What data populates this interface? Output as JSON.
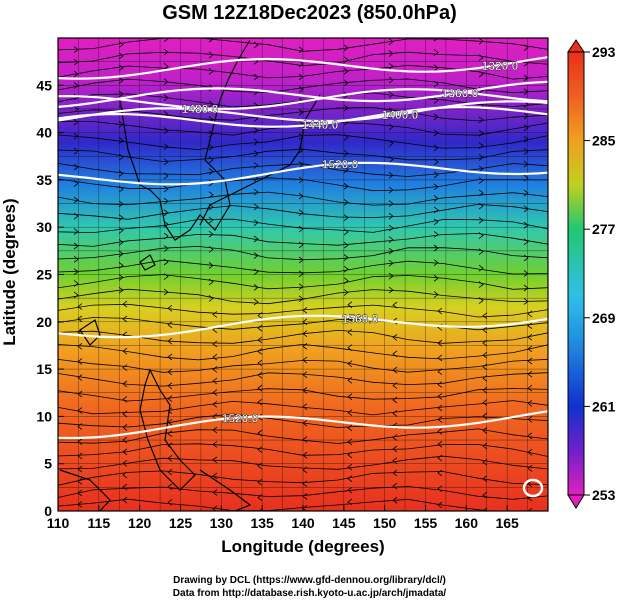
{
  "title": "GSM 12Z18Dec2023 (850.0hPa)",
  "credits": {
    "line1": "Drawing by DCL (https://www.gfd-dennou.org/library/dcl/)",
    "line2": "Data from http://database.rish.kyoto-u.ac.jp/arch/jmadata/"
  },
  "chart_data": {
    "type": "map",
    "xlabel": "Longitude (degrees)",
    "ylabel": "Latitude  (degrees)",
    "xlim": [
      110,
      170
    ],
    "ylim": [
      0,
      50
    ],
    "x_ticks": [
      110,
      115,
      120,
      125,
      130,
      135,
      140,
      145,
      150,
      155,
      160,
      165
    ],
    "y_ticks": [
      0,
      5,
      10,
      15,
      20,
      25,
      30,
      35,
      40,
      45
    ],
    "grid": true,
    "colorbar": {
      "ticks": [
        253,
        261,
        269,
        277,
        285,
        293
      ],
      "min": 253,
      "max": 293,
      "stops": [
        "#e020c0",
        "#7020c8",
        "#1030d0",
        "#2090e0",
        "#30c0e8",
        "#20c870",
        "#80d020",
        "#d0d020",
        "#f0a020",
        "#f06020",
        "#e83020"
      ]
    },
    "contours": [
      {
        "label": "1320.0",
        "lat": 46.5
      },
      {
        "label": "1360.0",
        "lat": 43.5
      },
      {
        "label": "1400.0",
        "lat": 41.5
      },
      {
        "label": "1440.0",
        "lat": 41
      },
      {
        "label": "1480.0",
        "lat": 43
      },
      {
        "label": "1520.0",
        "lat": 35
      },
      {
        "label": "1560.0",
        "lat": 19
      },
      {
        "label": "1520.0",
        "lat": 8.5
      }
    ]
  }
}
